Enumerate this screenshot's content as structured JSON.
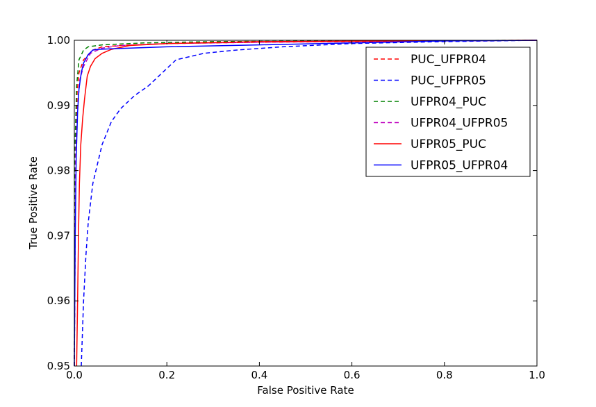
{
  "chart_data": {
    "type": "line",
    "xlabel": "False Positive Rate",
    "ylabel": "True Positive Rate",
    "xlim": [
      0.0,
      1.0
    ],
    "ylim": [
      0.95,
      1.0
    ],
    "x_ticks": [
      "0.0",
      "0.2",
      "0.4",
      "0.6",
      "0.8",
      "1.0"
    ],
    "y_ticks": [
      "0.95",
      "0.96",
      "0.97",
      "0.98",
      "0.99",
      "1.00"
    ],
    "grid": false,
    "legend_position": "top-right",
    "series": [
      {
        "name": "PUC_UFPR04",
        "color": "#ff0000",
        "linestyle": "dashed",
        "x": [
          0.0,
          0.003,
          0.006,
          0.01,
          0.02,
          0.04,
          0.06,
          0.1,
          0.2,
          0.4,
          0.6,
          0.8,
          1.0
        ],
        "y": [
          0.95,
          0.985,
          0.992,
          0.995,
          0.997,
          0.9985,
          0.999,
          0.9992,
          0.9995,
          0.9997,
          0.9998,
          0.9999,
          1.0
        ]
      },
      {
        "name": "PUC_UFPR05",
        "color": "#0000ff",
        "linestyle": "dashed",
        "x": [
          0.015,
          0.02,
          0.025,
          0.03,
          0.04,
          0.05,
          0.06,
          0.08,
          0.1,
          0.13,
          0.16,
          0.19,
          0.22,
          0.28,
          0.35,
          0.45,
          0.6,
          0.8,
          1.0
        ],
        "y": [
          0.95,
          0.96,
          0.967,
          0.972,
          0.978,
          0.981,
          0.984,
          0.9875,
          0.9895,
          0.9915,
          0.993,
          0.995,
          0.997,
          0.998,
          0.9985,
          0.999,
          0.9995,
          0.9998,
          1.0
        ]
      },
      {
        "name": "UFPR04_PUC",
        "color": "#008000",
        "linestyle": "dashed",
        "x": [
          0.0,
          0.002,
          0.005,
          0.01,
          0.02,
          0.03,
          0.06,
          0.15,
          0.3,
          0.6,
          1.0
        ],
        "y": [
          0.95,
          0.985,
          0.993,
          0.997,
          0.9985,
          0.999,
          0.9993,
          0.9996,
          0.9998,
          0.9999,
          1.0
        ]
      },
      {
        "name": "UFPR04_UFPR05",
        "color": "#bf00bf",
        "linestyle": "dashed",
        "x": [
          0.0,
          0.003,
          0.007,
          0.012,
          0.02,
          0.035,
          0.06,
          0.1,
          0.2,
          0.4,
          0.7,
          1.0
        ],
        "y": [
          0.95,
          0.983,
          0.99,
          0.994,
          0.996,
          0.998,
          0.9988,
          0.9992,
          0.9995,
          0.9997,
          0.9999,
          1.0
        ]
      },
      {
        "name": "UFPR05_PUC",
        "color": "#ff0000",
        "linestyle": "solid",
        "x": [
          0.005,
          0.007,
          0.009,
          0.011,
          0.014,
          0.018,
          0.022,
          0.028,
          0.035,
          0.045,
          0.06,
          0.08,
          0.12,
          0.2,
          0.4,
          0.7,
          1.0
        ],
        "y": [
          0.95,
          0.96,
          0.97,
          0.978,
          0.984,
          0.988,
          0.991,
          0.9945,
          0.996,
          0.9972,
          0.998,
          0.9986,
          0.9992,
          0.9995,
          0.9998,
          0.9999,
          1.0
        ]
      },
      {
        "name": "UFPR05_UFPR04",
        "color": "#0000ff",
        "linestyle": "solid",
        "x": [
          0.0,
          0.002,
          0.004,
          0.007,
          0.01,
          0.015,
          0.02,
          0.03,
          0.04,
          0.05,
          0.08,
          0.2,
          0.4,
          0.6,
          0.8,
          1.0
        ],
        "y": [
          0.95,
          0.97,
          0.982,
          0.989,
          0.9925,
          0.995,
          0.9965,
          0.9978,
          0.9985,
          0.9986,
          0.9987,
          0.999,
          0.9993,
          0.9996,
          0.9999,
          1.0
        ]
      }
    ]
  }
}
